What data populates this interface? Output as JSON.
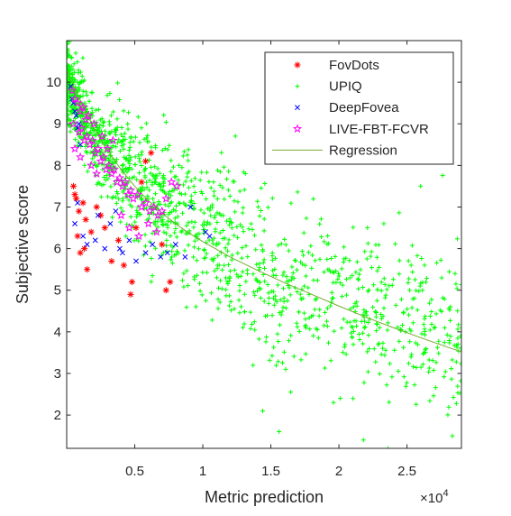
{
  "chart_data": {
    "type": "scatter",
    "xlabel": "Metric prediction",
    "ylabel": "Subjective score",
    "x_exponent_label": "×10",
    "x_exponent_power": "4",
    "xlim": [
      0,
      29000
    ],
    "ylim": [
      1.2,
      11
    ],
    "xticks": [
      5000,
      10000,
      15000,
      20000,
      25000
    ],
    "xtick_labels": [
      "0.5",
      "1",
      "1.5",
      "2",
      "2.5"
    ],
    "yticks": [
      2,
      3,
      4,
      5,
      6,
      7,
      8,
      9,
      10
    ],
    "ytick_labels": [
      "2",
      "3",
      "4",
      "5",
      "6",
      "7",
      "8",
      "9",
      "10"
    ],
    "legend_position": "top-right",
    "grid": false,
    "series": [
      {
        "name": "FovDots",
        "marker": "asterisk",
        "color": "#ff0000",
        "points": [
          [
            600,
            7.3
          ],
          [
            700,
            7.2
          ],
          [
            900,
            6.9
          ],
          [
            1000,
            5.9
          ],
          [
            1200,
            7.1
          ],
          [
            1300,
            6.0
          ],
          [
            1500,
            5.5
          ],
          [
            1400,
            6.7
          ],
          [
            500,
            7.5
          ],
          [
            800,
            6.3
          ],
          [
            2200,
            7.0
          ],
          [
            2800,
            6.5
          ],
          [
            3300,
            5.7
          ],
          [
            4200,
            5.6
          ],
          [
            4700,
            4.9
          ],
          [
            4800,
            5.2
          ],
          [
            5100,
            6.5
          ],
          [
            5500,
            7.6
          ],
          [
            5800,
            8.1
          ],
          [
            6200,
            8.3
          ],
          [
            7000,
            6.1
          ],
          [
            7300,
            5.0
          ],
          [
            7600,
            5.2
          ],
          [
            1800,
            6.4
          ],
          [
            2500,
            6.8
          ],
          [
            3800,
            6.2
          ]
        ]
      },
      {
        "name": "UPIQ",
        "marker": "plus",
        "color": "#00ff00",
        "cloud": {
          "n": 1500,
          "seed": 7,
          "xmax": 29000,
          "ymin": 1.2,
          "ymax": 11,
          "trend": [
            [
              0,
              10.0
            ],
            [
              2000,
              8.7
            ],
            [
              5000,
              7.6
            ],
            [
              10000,
              6.4
            ],
            [
              15000,
              5.4
            ],
            [
              20000,
              4.7
            ],
            [
              25000,
              4.2
            ],
            [
              29000,
              3.9
            ]
          ]
        },
        "points": [
          [
            21800,
            1.4
          ],
          [
            23600,
            1.2
          ],
          [
            26000,
            7.5
          ],
          [
            29000,
            4.1
          ],
          [
            20100,
            2.4
          ],
          [
            19600,
            2.3
          ],
          [
            15600,
            1.6
          ],
          [
            14400,
            2.1
          ],
          [
            25200,
            5.0
          ],
          [
            28200,
            4.6
          ],
          [
            23300,
            6.6
          ],
          [
            22100,
            6.5
          ]
        ]
      },
      {
        "name": "DeepFovea",
        "marker": "x",
        "color": "#0000ff",
        "points": [
          [
            300,
            9.9
          ],
          [
            400,
            9.6
          ],
          [
            500,
            9.5
          ],
          [
            600,
            9.3
          ],
          [
            700,
            9.2
          ],
          [
            800,
            8.9
          ],
          [
            900,
            9.0
          ],
          [
            1000,
            8.5
          ],
          [
            600,
            6.6
          ],
          [
            800,
            7.1
          ],
          [
            1200,
            6.3
          ],
          [
            1500,
            6.1
          ],
          [
            2100,
            6.2
          ],
          [
            2800,
            6.0
          ],
          [
            3200,
            6.6
          ],
          [
            3600,
            6.9
          ],
          [
            4100,
            5.9
          ],
          [
            4600,
            6.2
          ],
          [
            5100,
            5.7
          ],
          [
            5800,
            5.9
          ],
          [
            6300,
            6.1
          ],
          [
            6900,
            5.8
          ],
          [
            7400,
            5.9
          ],
          [
            8000,
            6.1
          ],
          [
            8700,
            5.8
          ],
          [
            9100,
            7.0
          ],
          [
            10200,
            6.4
          ],
          [
            10500,
            6.3
          ],
          [
            2300,
            6.8
          ],
          [
            3900,
            6.0
          ]
        ]
      },
      {
        "name": "LIVE-FBT-FCVR",
        "marker": "pentagram",
        "color": "#ff00ff",
        "points": [
          [
            400,
            9.8
          ],
          [
            600,
            9.6
          ],
          [
            800,
            9.5
          ],
          [
            1000,
            9.3
          ],
          [
            1200,
            9.4
          ],
          [
            1400,
            9.1
          ],
          [
            1600,
            9.2
          ],
          [
            500,
            9.0
          ],
          [
            900,
            8.8
          ],
          [
            1100,
            8.9
          ],
          [
            1300,
            8.6
          ],
          [
            1500,
            8.7
          ],
          [
            1700,
            8.5
          ],
          [
            1900,
            8.6
          ],
          [
            2100,
            8.3
          ],
          [
            2300,
            8.4
          ],
          [
            2500,
            8.1
          ],
          [
            2700,
            8.2
          ],
          [
            2900,
            7.9
          ],
          [
            3100,
            8.0
          ],
          [
            3300,
            7.8
          ],
          [
            3500,
            7.9
          ],
          [
            3700,
            7.6
          ],
          [
            3900,
            7.7
          ],
          [
            4100,
            7.5
          ],
          [
            4300,
            7.6
          ],
          [
            4500,
            7.3
          ],
          [
            4700,
            7.4
          ],
          [
            4900,
            7.2
          ],
          [
            5200,
            7.3
          ],
          [
            5500,
            7.0
          ],
          [
            5800,
            7.1
          ],
          [
            6100,
            6.9
          ],
          [
            6400,
            7.0
          ],
          [
            6700,
            6.8
          ],
          [
            7000,
            6.9
          ],
          [
            7300,
            7.2
          ],
          [
            7700,
            7.6
          ],
          [
            8100,
            7.5
          ],
          [
            2000,
            9.0
          ],
          [
            2600,
            8.7
          ],
          [
            3000,
            8.4
          ],
          [
            3400,
            8.6
          ],
          [
            1800,
            8.0
          ],
          [
            2200,
            7.8
          ],
          [
            4000,
            6.8
          ],
          [
            4600,
            6.5
          ],
          [
            5300,
            6.3
          ],
          [
            6000,
            6.6
          ],
          [
            6600,
            6.4
          ],
          [
            1000,
            8.2
          ],
          [
            600,
            8.4
          ]
        ]
      },
      {
        "name": "Regression",
        "marker": "line",
        "color": "#77ac30",
        "curve": [
          [
            0,
            10.3
          ],
          [
            1000,
            9.55
          ],
          [
            2000,
            8.9
          ],
          [
            3000,
            8.35
          ],
          [
            4000,
            7.9
          ],
          [
            5000,
            7.5
          ],
          [
            6000,
            7.15
          ],
          [
            7000,
            6.85
          ],
          [
            8000,
            6.6
          ],
          [
            9000,
            6.37
          ],
          [
            10000,
            6.17
          ],
          [
            12000,
            5.8
          ],
          [
            14000,
            5.48
          ],
          [
            16000,
            5.18
          ],
          [
            18000,
            4.9
          ],
          [
            20000,
            4.62
          ],
          [
            22000,
            4.35
          ],
          [
            24000,
            4.1
          ],
          [
            26000,
            3.86
          ],
          [
            28000,
            3.63
          ],
          [
            29000,
            3.52
          ]
        ]
      }
    ]
  }
}
